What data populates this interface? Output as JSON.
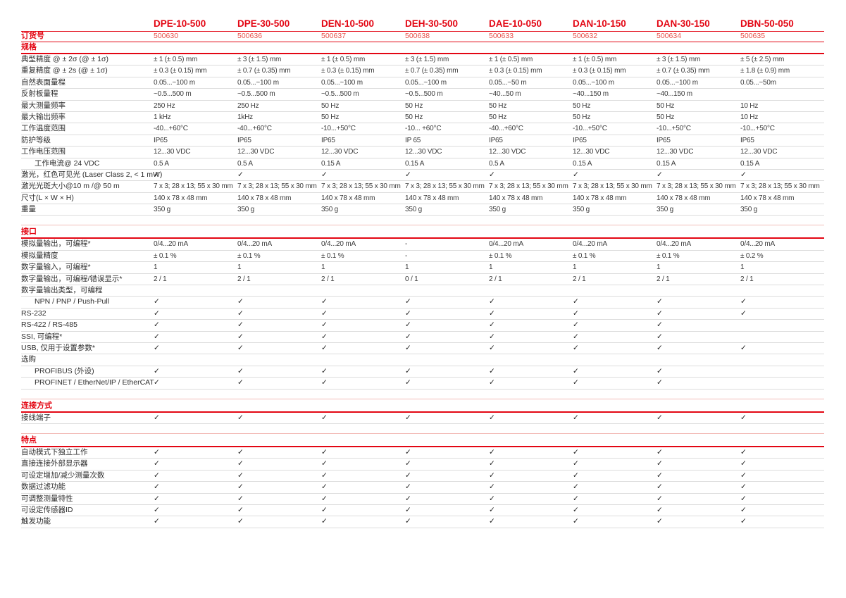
{
  "colors": {
    "red": "#e30613",
    "light_red": "#e8514b",
    "pink_line": "#f2bcb8",
    "gray_line": "#dcdcdc",
    "text": "#3a3a3a"
  },
  "table": {
    "order_row_label": "订货号",
    "products": [
      {
        "name": "DPE-10-500",
        "order": "500630"
      },
      {
        "name": "DPE-30-500",
        "order": "500636"
      },
      {
        "name": "DEN-10-500",
        "order": "500637"
      },
      {
        "name": "DEH-30-500",
        "order": "500638"
      },
      {
        "name": "DAE-10-050",
        "order": "500633"
      },
      {
        "name": "DAN-10-150",
        "order": "500632"
      },
      {
        "name": "DAN-30-150",
        "order": "500634"
      },
      {
        "name": "DBN-50-050",
        "order": "500635"
      }
    ],
    "sections": [
      {
        "title": "规格",
        "rows": [
          {
            "label": "典型精度 @ ± 2σ (@ ± 1σ)",
            "values": [
              "± 1 (± 0.5) mm",
              "± 3 (± 1.5) mm",
              "± 1 (± 0.5) mm",
              "± 3 (± 1.5) mm",
              "± 1 (± 0.5) mm",
              "± 1 (± 0.5) mm",
              "± 3 (± 1.5) mm",
              "± 5 (± 2.5) mm"
            ]
          },
          {
            "label": "重复精度 @ ± 2s (@ ± 1σ)",
            "values": [
              "± 0.3 (± 0.15) mm",
              "± 0.7 (± 0.35) mm",
              "± 0.3 (± 0.15) mm",
              "± 0.7 (± 0.35) mm",
              "± 0.3 (± 0.15) mm",
              "± 0.3 (± 0.15) mm",
              "± 0.7 (± 0.35) mm",
              "± 1.8 (± 0.9) mm"
            ]
          },
          {
            "label": "自然表面量程",
            "values": [
              "0.05...~100 m",
              "0.05...~100 m",
              "0.05...~100 m",
              "0.05...~100 m",
              "0.05...~50 m",
              "0.05...~100 m",
              "0.05...~100 m",
              "0.05...~50m"
            ]
          },
          {
            "label": "反射板量程",
            "values": [
              "~0.5...500 m",
              "~0.5...500 m",
              "~0.5...500 m",
              "~0.5...500 m",
              "~40...50 m",
              "~40...150 m",
              "~40...150 m",
              ""
            ]
          },
          {
            "label": "最大测量频率",
            "values": [
              "250 Hz",
              "250 Hz",
              "50 Hz",
              "50 Hz",
              "50 Hz",
              "50 Hz",
              "50 Hz",
              "10 Hz"
            ]
          },
          {
            "label": "最大输出频率",
            "values": [
              "1 kHz",
              "1kHz",
              "50 Hz",
              "50 Hz",
              "50 Hz",
              "50 Hz",
              "50 Hz",
              "10 Hz"
            ]
          },
          {
            "label": "工作温度范围",
            "values": [
              "-40...+60°C",
              "-40...+60°C",
              "-10...+50°C",
              "-10... +60°C",
              "-40...+60°C",
              "-10...+50°C",
              "-10...+50°C",
              "-10...+50°C"
            ]
          },
          {
            "label": "防护等级",
            "values": [
              "IP65",
              "IP65",
              "IP65",
              "IP 65",
              "IP65",
              "IP65",
              "IP65",
              "IP65"
            ]
          },
          {
            "label": "工作电压范围",
            "values": [
              "12...30 VDC",
              "12...30 VDC",
              "12...30 VDC",
              "12...30 VDC",
              "12...30 VDC",
              "12...30 VDC",
              "12...30 VDC",
              "12...30 VDC"
            ]
          },
          {
            "label": "工作电流@ 24 VDC",
            "indent": true,
            "values": [
              "0.5 A",
              "0.5 A",
              "0.15 A",
              "0.15 A",
              "0.5 A",
              "0.15 A",
              "0.15 A",
              "0.15 A"
            ]
          },
          {
            "label": "激光，红色可见光 (Laser Class 2, < 1 mW)",
            "values": [
              "✓",
              "✓",
              "✓",
              "✓",
              "✓",
              "✓",
              "✓",
              "✓"
            ]
          },
          {
            "label": "激光光斑大小@10 m /@ 50 m",
            "values": [
              "7 x 3; 28 x 13; 55 x 30 mm",
              "7 x 3; 28 x 13; 55 x 30 mm",
              "7 x 3; 28 x 13; 55 x 30 mm",
              "7 x 3; 28 x 13; 55 x 30 mm",
              "7 x 3; 28 x 13; 55 x 30 mm",
              "7 x 3; 28 x 13; 55 x 30 mm",
              "7 x 3; 28 x 13; 55 x 30 mm",
              "7 x 3; 28 x 13; 55 x 30 mm"
            ]
          },
          {
            "label": "尺寸(L × W × H)",
            "values": [
              "140 x 78 x 48 mm",
              "140 x 78 x 48 mm",
              "140 x 78 x 48 mm",
              "140 x 78 x 48 mm",
              "140 x 78 x 48 mm",
              "140 x 78 x 48 mm",
              "140 x 78 x 48 mm",
              "140 x 78 x 48 mm"
            ]
          },
          {
            "label": "重量",
            "values": [
              "350 g",
              "350 g",
              "350 g",
              "350 g",
              "350 g",
              "350 g",
              "350 g",
              "350 g"
            ]
          }
        ]
      },
      {
        "title": "接口",
        "rows": [
          {
            "label": "模拟量输出，可编程*",
            "values": [
              "0/4...20 mA",
              "0/4...20 mA",
              "0/4...20 mA",
              "-",
              "0/4...20 mA",
              "0/4...20 mA",
              "0/4...20 mA",
              "0/4...20 mA"
            ]
          },
          {
            "label": "模拟量精度",
            "values": [
              "± 0.1 %",
              "± 0.1 %",
              "± 0.1 %",
              "-",
              "± 0.1 %",
              "± 0.1 %",
              "± 0.1 %",
              "± 0.2 %"
            ]
          },
          {
            "label": "数字量输入，可编程*",
            "values": [
              "1",
              "1",
              "1",
              "1",
              "1",
              "1",
              "1",
              "1"
            ]
          },
          {
            "label": "数字量输出，可编程/错误显示*",
            "values": [
              "2 / 1",
              "2 / 1",
              "2 / 1",
              "0 / 1",
              "2 / 1",
              "2 / 1",
              "2 / 1",
              "2 / 1"
            ]
          },
          {
            "label": "数字量输出类型，可编程",
            "values": [
              "",
              "",
              "",
              "",
              "",
              "",
              "",
              ""
            ]
          },
          {
            "label": "NPN / PNP / Push-Pull",
            "indent": true,
            "values": [
              "✓",
              "✓",
              "✓",
              "✓",
              "✓",
              "✓",
              "✓",
              "✓"
            ]
          },
          {
            "label": "RS-232",
            "values": [
              "✓",
              "✓",
              "✓",
              "✓",
              "✓",
              "✓",
              "✓",
              "✓"
            ]
          },
          {
            "label": "RS-422 / RS-485",
            "values": [
              "✓",
              "✓",
              "✓",
              "✓",
              "✓",
              "✓",
              "✓",
              ""
            ]
          },
          {
            "label": "SSI, 可编程*",
            "values": [
              "✓",
              "✓",
              "✓",
              "✓",
              "✓",
              "✓",
              "✓",
              ""
            ]
          },
          {
            "label": "USB, 仅用于设置参数*",
            "values": [
              "✓",
              "✓",
              "✓",
              "✓",
              "✓",
              "✓",
              "✓",
              "✓"
            ]
          },
          {
            "label": "选购",
            "values": [
              "",
              "",
              "",
              "",
              "",
              "",
              "",
              ""
            ]
          },
          {
            "label": "PROFIBUS (外设)",
            "indent": true,
            "values": [
              "✓",
              "✓",
              "✓",
              "✓",
              "✓",
              "✓",
              "✓",
              ""
            ]
          },
          {
            "label": "PROFINET / EtherNet/IP / EtherCAT",
            "indent": true,
            "values": [
              "✓",
              "✓",
              "✓",
              "✓",
              "✓",
              "✓",
              "✓",
              ""
            ]
          }
        ]
      },
      {
        "title": "连接方式",
        "rows": [
          {
            "label": "接线端子",
            "values": [
              "✓",
              "✓",
              "✓",
              "✓",
              "✓",
              "✓",
              "✓",
              "✓"
            ]
          }
        ]
      },
      {
        "title": "特点",
        "rows": [
          {
            "label": "自动模式下独立工作",
            "values": [
              "✓",
              "✓",
              "✓",
              "✓",
              "✓",
              "✓",
              "✓",
              "✓"
            ]
          },
          {
            "label": "直接连接外部显示器",
            "values": [
              "✓",
              "✓",
              "✓",
              "✓",
              "✓",
              "✓",
              "✓",
              "✓"
            ]
          },
          {
            "label": "可设定增加/减少测量次数",
            "values": [
              "✓",
              "✓",
              "✓",
              "✓",
              "✓",
              "✓",
              "✓",
              "✓"
            ]
          },
          {
            "label": "数据过滤功能",
            "values": [
              "✓",
              "✓",
              "✓",
              "✓",
              "✓",
              "✓",
              "✓",
              "✓"
            ]
          },
          {
            "label": "可调整测量特性",
            "values": [
              "✓",
              "✓",
              "✓",
              "✓",
              "✓",
              "✓",
              "✓",
              "✓"
            ]
          },
          {
            "label": "可设定传感器ID",
            "values": [
              "✓",
              "✓",
              "✓",
              "✓",
              "✓",
              "✓",
              "✓",
              "✓"
            ]
          },
          {
            "label": "触发功能",
            "values": [
              "✓",
              "✓",
              "✓",
              "✓",
              "✓",
              "✓",
              "✓",
              "✓"
            ]
          }
        ]
      }
    ]
  }
}
